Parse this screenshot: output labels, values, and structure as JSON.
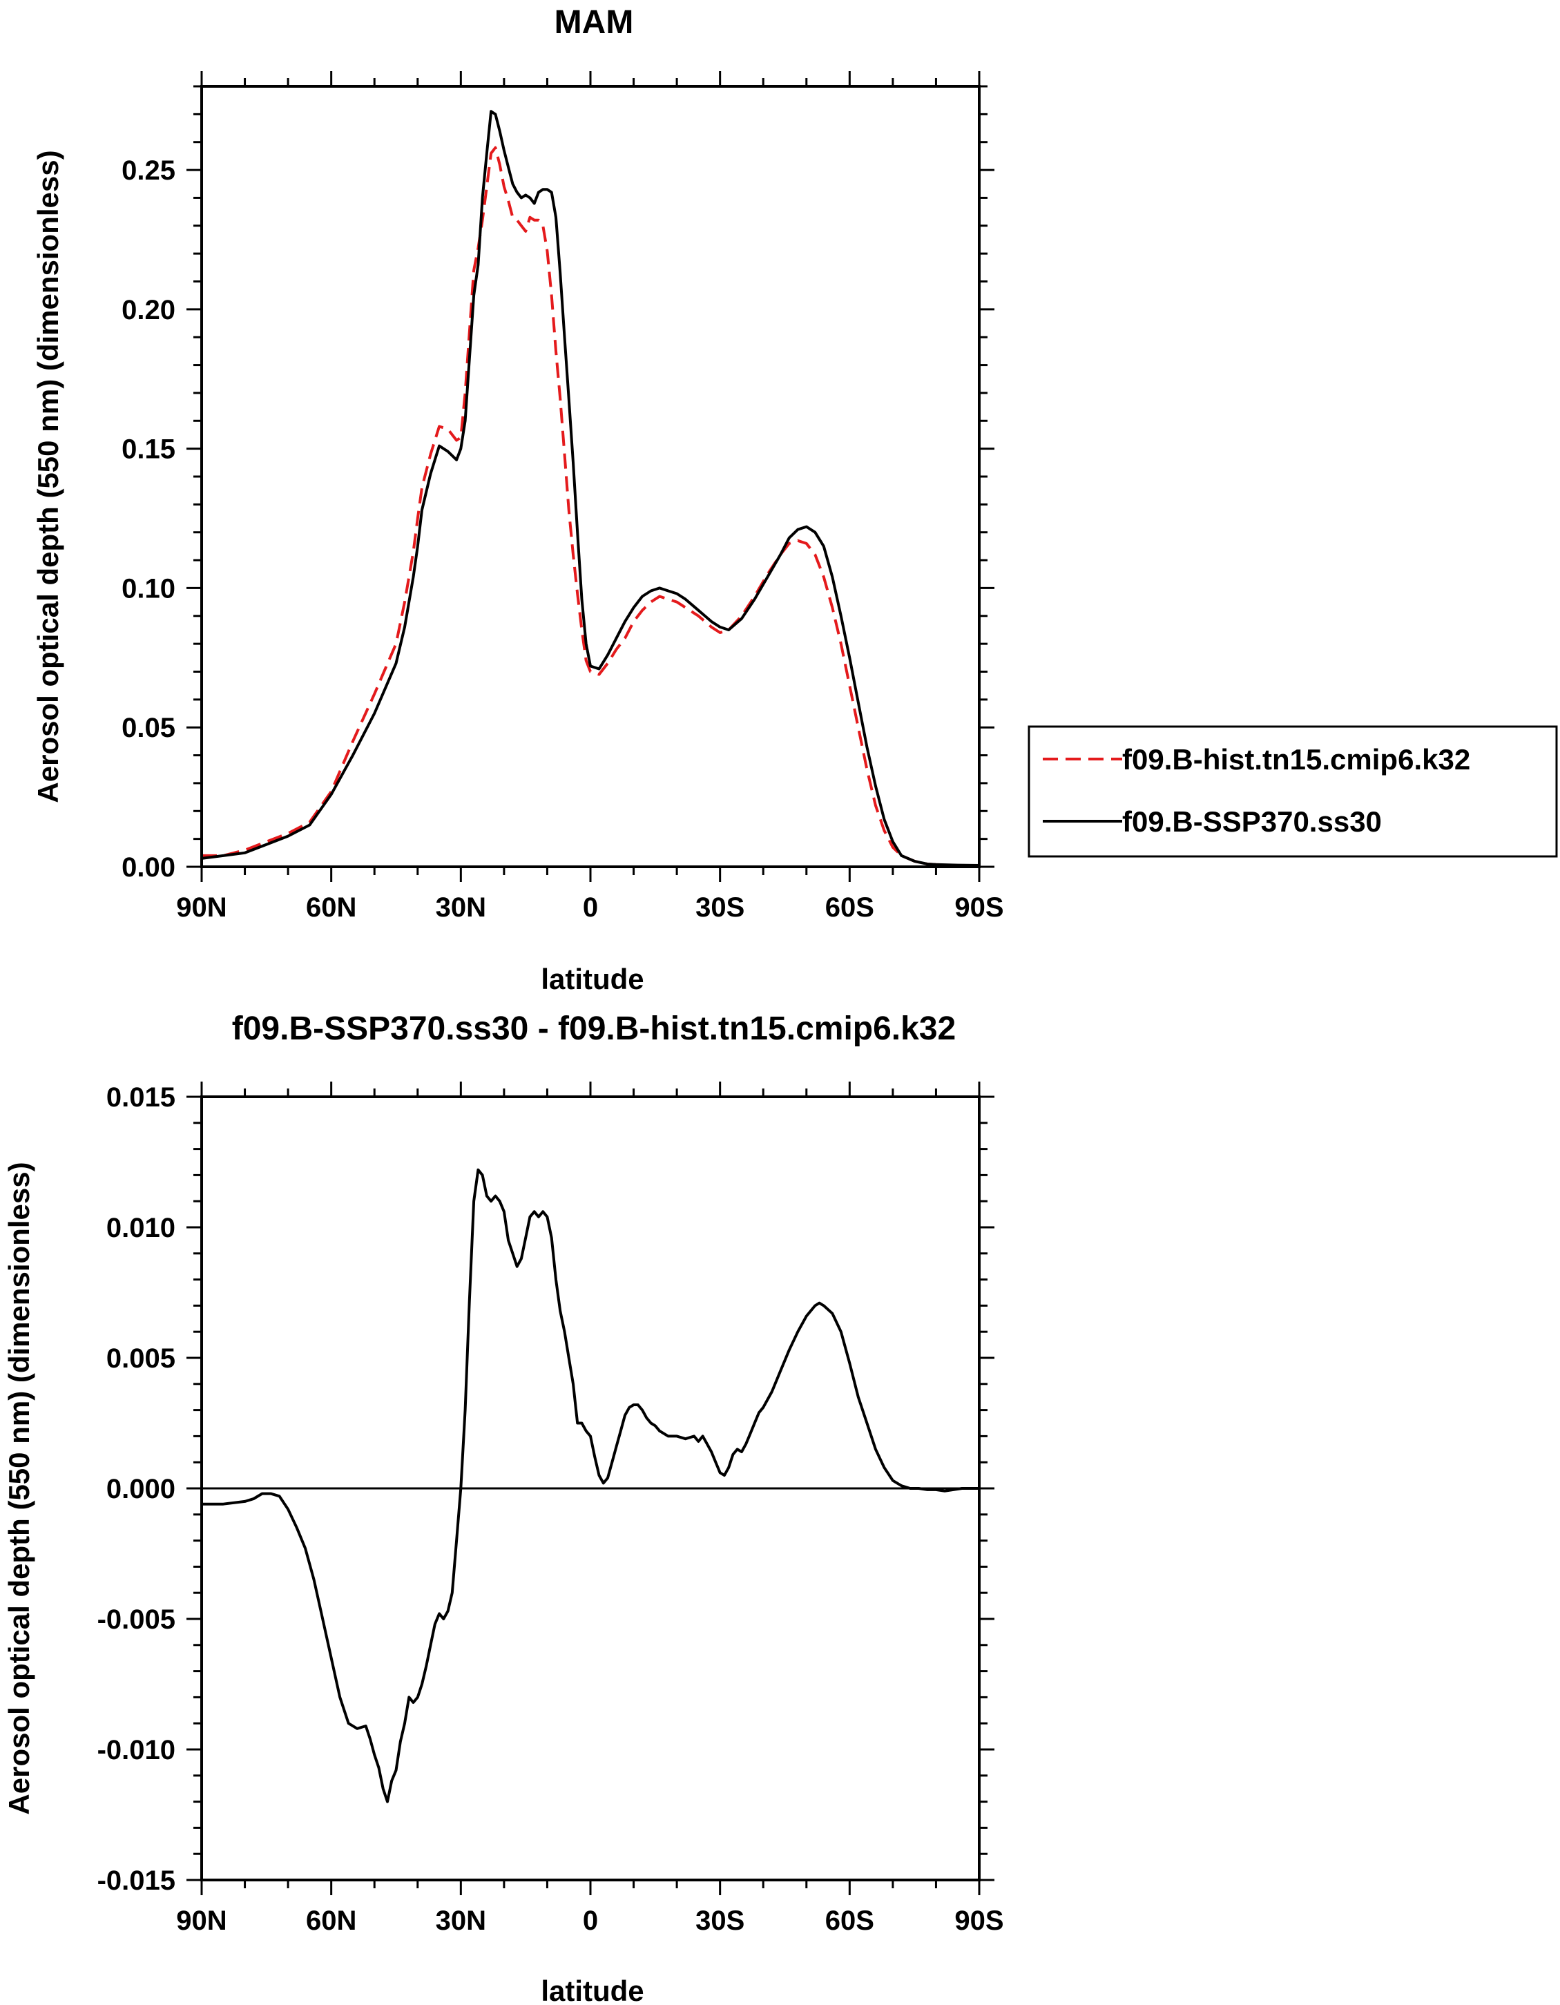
{
  "chart_data": [
    {
      "type": "line",
      "title": "MAM",
      "xlabel": "latitude",
      "ylabel": "Aerosol optical depth (550 nm) (dimensionless)",
      "xlim": [
        90,
        -90
      ],
      "ylim": [
        0.0,
        0.28
      ],
      "x_ticks": [
        90,
        60,
        30,
        0,
        -30,
        -60,
        -90
      ],
      "x_tick_labels": [
        "90N",
        "60N",
        "30N",
        "0",
        "30S",
        "60S",
        "90S"
      ],
      "y_ticks": [
        0.0,
        0.05,
        0.1,
        0.15,
        0.2,
        0.25
      ],
      "y_tick_labels": [
        "0.00",
        "0.05",
        "0.10",
        "0.15",
        "0.20",
        "0.25"
      ],
      "grid": false,
      "legend_position": "right",
      "series": [
        {
          "name": "f09.B-hist.tn15.cmip6.k32",
          "color": "#e41a1c",
          "dash": "dashed",
          "x": [
            90,
            85,
            80,
            75,
            70,
            65,
            60,
            55,
            50,
            45,
            43,
            41,
            40,
            39,
            37,
            35,
            33,
            31,
            30,
            29,
            27,
            26,
            25,
            24,
            23,
            22,
            21,
            20,
            19,
            18,
            17,
            16,
            15,
            14,
            13,
            12,
            11,
            10,
            9,
            8,
            7,
            6,
            5,
            4,
            3,
            2,
            1,
            0,
            -2,
            -4,
            -6,
            -8,
            -10,
            -12,
            -14,
            -16,
            -18,
            -20,
            -22,
            -25,
            -28,
            -30,
            -32,
            -35,
            -38,
            -41,
            -44,
            -46,
            -48,
            -50,
            -52,
            -54,
            -56,
            -58,
            -60,
            -62,
            -64,
            -66,
            -68,
            -70,
            -72,
            -75,
            -78,
            -80,
            -85,
            -90
          ],
          "y": [
            0.004,
            0.004,
            0.006,
            0.009,
            0.012,
            0.016,
            0.027,
            0.045,
            0.062,
            0.08,
            0.095,
            0.113,
            0.125,
            0.136,
            0.148,
            0.158,
            0.157,
            0.153,
            0.154,
            0.17,
            0.214,
            0.222,
            0.232,
            0.244,
            0.256,
            0.258,
            0.252,
            0.244,
            0.239,
            0.233,
            0.232,
            0.23,
            0.228,
            0.233,
            0.232,
            0.232,
            0.23,
            0.221,
            0.205,
            0.185,
            0.168,
            0.148,
            0.128,
            0.112,
            0.098,
            0.085,
            0.074,
            0.07,
            0.069,
            0.073,
            0.078,
            0.082,
            0.088,
            0.092,
            0.095,
            0.097,
            0.096,
            0.095,
            0.093,
            0.09,
            0.086,
            0.084,
            0.085,
            0.09,
            0.097,
            0.105,
            0.112,
            0.116,
            0.117,
            0.116,
            0.112,
            0.104,
            0.093,
            0.08,
            0.065,
            0.05,
            0.035,
            0.022,
            0.013,
            0.007,
            0.004,
            0.002,
            0.001,
            0.0008,
            0.0005,
            0.0004
          ]
        },
        {
          "name": "f09.B-SSP370.ss30",
          "color": "#000000",
          "dash": "solid",
          "x": [
            90,
            85,
            80,
            75,
            70,
            65,
            60,
            55,
            50,
            45,
            43,
            41,
            40,
            39,
            37,
            35,
            33,
            31,
            30,
            29,
            27,
            26,
            25,
            24,
            23,
            22,
            21,
            20,
            19,
            18,
            17,
            16,
            15,
            14,
            13,
            12,
            11,
            10,
            9,
            8,
            7,
            6,
            5,
            4,
            3,
            2,
            1,
            0,
            -2,
            -4,
            -6,
            -8,
            -10,
            -12,
            -14,
            -16,
            -18,
            -20,
            -22,
            -25,
            -28,
            -30,
            -32,
            -35,
            -38,
            -41,
            -44,
            -46,
            -48,
            -50,
            -52,
            -54,
            -56,
            -58,
            -60,
            -62,
            -64,
            -66,
            -68,
            -70,
            -72,
            -75,
            -78,
            -80,
            -85,
            -90
          ],
          "y": [
            0.003,
            0.004,
            0.005,
            0.008,
            0.011,
            0.015,
            0.026,
            0.04,
            0.055,
            0.073,
            0.086,
            0.104,
            0.115,
            0.128,
            0.141,
            0.151,
            0.149,
            0.146,
            0.15,
            0.16,
            0.205,
            0.216,
            0.24,
            0.256,
            0.271,
            0.27,
            0.264,
            0.257,
            0.251,
            0.245,
            0.242,
            0.24,
            0.241,
            0.24,
            0.238,
            0.242,
            0.243,
            0.243,
            0.242,
            0.233,
            0.213,
            0.19,
            0.168,
            0.145,
            0.12,
            0.096,
            0.08,
            0.072,
            0.071,
            0.076,
            0.082,
            0.088,
            0.093,
            0.097,
            0.099,
            0.1,
            0.099,
            0.098,
            0.096,
            0.092,
            0.088,
            0.086,
            0.085,
            0.089,
            0.096,
            0.104,
            0.112,
            0.118,
            0.121,
            0.122,
            0.12,
            0.115,
            0.104,
            0.09,
            0.075,
            0.059,
            0.043,
            0.029,
            0.017,
            0.009,
            0.004,
            0.002,
            0.001,
            0.0008,
            0.0006,
            0.0005
          ]
        }
      ]
    },
    {
      "type": "line",
      "title": "f09.B-SSP370.ss30 - f09.B-hist.tn15.cmip6.k32",
      "xlabel": "latitude",
      "ylabel": "Aerosol optical depth (550 nm) (dimensionless)",
      "xlim": [
        90,
        -90
      ],
      "ylim": [
        -0.015,
        0.015
      ],
      "x_ticks": [
        90,
        60,
        30,
        0,
        -30,
        -60,
        -90
      ],
      "x_tick_labels": [
        "90N",
        "60N",
        "30N",
        "0",
        "30S",
        "60S",
        "90S"
      ],
      "y_ticks": [
        -0.015,
        -0.01,
        -0.005,
        0.0,
        0.005,
        0.01,
        0.015
      ],
      "y_tick_labels": [
        "-0.015",
        "-0.010",
        "-0.005",
        "0.000",
        "0.005",
        "0.010",
        "0.015"
      ],
      "grid": false,
      "reference_line": 0.0,
      "series": [
        {
          "color": "#000000",
          "dash": "solid",
          "x": [
            90,
            85,
            80,
            78,
            76,
            74,
            72,
            70,
            68,
            66,
            64,
            62,
            60,
            58,
            56,
            54,
            52,
            51,
            50,
            49,
            48,
            47,
            46,
            45,
            44,
            43,
            42,
            41,
            40,
            39,
            38,
            37,
            36,
            35,
            34,
            33,
            32,
            31,
            30,
            29,
            28,
            27,
            26,
            25,
            24,
            23,
            22,
            21,
            20,
            19,
            18,
            17,
            16,
            15,
            14,
            13,
            12,
            11,
            10,
            9,
            8,
            7,
            6,
            5,
            4,
            3,
            2,
            1,
            0,
            -1,
            -2,
            -3,
            -4,
            -5,
            -6,
            -7,
            -8,
            -9,
            -10,
            -11,
            -12,
            -13,
            -14,
            -15,
            -16,
            -18,
            -20,
            -22,
            -24,
            -25,
            -26,
            -27,
            -28,
            -29,
            -30,
            -31,
            -32,
            -33,
            -34,
            -35,
            -36,
            -37,
            -38,
            -39,
            -40,
            -42,
            -44,
            -46,
            -48,
            -50,
            -52,
            -53,
            -54,
            -56,
            -58,
            -60,
            -62,
            -64,
            -66,
            -68,
            -70,
            -72,
            -74,
            -76,
            -78,
            -80,
            -82,
            -84,
            -86,
            -88,
            -90
          ],
          "y": [
            -0.0006,
            -0.0006,
            -0.0005,
            -0.0004,
            -0.0002,
            -0.0002,
            -0.0003,
            -0.0008,
            -0.0015,
            -0.0023,
            -0.0035,
            -0.005,
            -0.0065,
            -0.008,
            -0.009,
            -0.0092,
            -0.0091,
            -0.0096,
            -0.0102,
            -0.0107,
            -0.0115,
            -0.012,
            -0.0112,
            -0.0108,
            -0.0097,
            -0.009,
            -0.008,
            -0.0082,
            -0.008,
            -0.0075,
            -0.0068,
            -0.006,
            -0.0052,
            -0.0048,
            -0.005,
            -0.0047,
            -0.004,
            -0.002,
            0.0,
            0.003,
            0.0072,
            0.011,
            0.0122,
            0.012,
            0.0112,
            0.011,
            0.0112,
            0.011,
            0.0106,
            0.0095,
            0.009,
            0.0085,
            0.0088,
            0.0096,
            0.0104,
            0.0106,
            0.0104,
            0.0106,
            0.0104,
            0.0096,
            0.008,
            0.0068,
            0.006,
            0.005,
            0.004,
            0.0025,
            0.0025,
            0.0022,
            0.002,
            0.0012,
            0.0005,
            0.0002,
            0.0004,
            0.001,
            0.0016,
            0.0022,
            0.0028,
            0.0031,
            0.0032,
            0.0032,
            0.003,
            0.0027,
            0.0025,
            0.0024,
            0.0022,
            0.002,
            0.002,
            0.0019,
            0.002,
            0.0018,
            0.002,
            0.0017,
            0.0014,
            0.001,
            0.0006,
            0.0005,
            0.0008,
            0.0013,
            0.0015,
            0.0014,
            0.0017,
            0.0021,
            0.0025,
            0.0029,
            0.0031,
            0.0037,
            0.0045,
            0.0053,
            0.006,
            0.0066,
            0.007,
            0.0071,
            0.007,
            0.0067,
            0.006,
            0.0048,
            0.0035,
            0.0025,
            0.0015,
            0.0008,
            0.0003,
            0.0001,
            0.0,
            0.0,
            -5e-05,
            -5e-05,
            -0.0001,
            -5e-05,
            0.0,
            0.0,
            0.0
          ]
        }
      ]
    }
  ]
}
